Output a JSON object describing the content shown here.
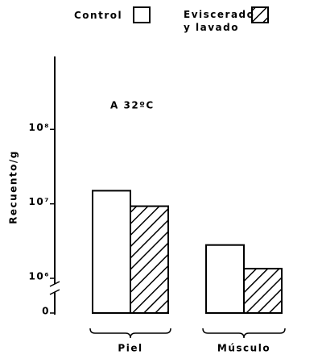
{
  "chart_data": {
    "type": "bar",
    "categories": [
      "Piel",
      "Músculo"
    ],
    "series": [
      {
        "name": "Control",
        "color": "#ffffff",
        "hatch": false,
        "values": [
          15000000,
          2800000
        ]
      },
      {
        "name": "Eviscerado y lavado",
        "color": "#ffffff",
        "hatch": true,
        "values": [
          9300000,
          1350000
        ]
      }
    ],
    "y_label": "Recuento/g",
    "annotation": "A 32ºC",
    "log_scale": true,
    "axis_break": true,
    "ylim": [
      0,
      1000000000
    ],
    "yticks": [
      {
        "value": 0,
        "label": "0"
      },
      {
        "value": 1000000,
        "label": "10⁶"
      },
      {
        "value": 10000000,
        "label": "10⁷"
      },
      {
        "value": 100000000,
        "label": "10⁸"
      }
    ],
    "legend": "top"
  }
}
